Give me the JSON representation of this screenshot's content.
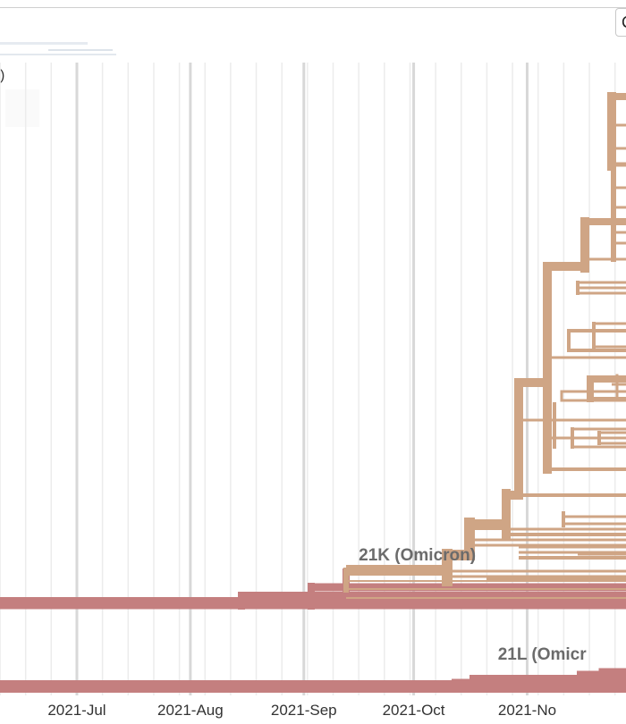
{
  "header": {
    "corner_control_text": "C"
  },
  "legend": {
    "partial_text": ")"
  },
  "chart_data": {
    "type": "phylogenetic-tree",
    "layout": "time-scaled rectangular tree",
    "x_axis": {
      "unit": "date",
      "range": [
        "2021-06-10",
        "2021-11-28"
      ],
      "ticks": [
        {
          "date": "2021-07-01",
          "label": "2021-Jul"
        },
        {
          "date": "2021-08-01",
          "label": "2021-Aug"
        },
        {
          "date": "2021-09-01",
          "label": "2021-Sep"
        },
        {
          "date": "2021-10-01",
          "label": "2021-Oct"
        },
        {
          "date": "2021-11-01",
          "label": "2021-No"
        }
      ],
      "grid": true
    },
    "clade_labels": [
      {
        "text": "21K (Omicron)",
        "date": "2021-09-16"
      },
      {
        "text": "21L (Omicr",
        "date": "2021-10-24"
      }
    ],
    "colors": {
      "root_lineage": "#c47f7f",
      "clade_21K": "#cfa585",
      "grid_major": "#d8d8d8",
      "grid_minor": "#ececec"
    }
  }
}
